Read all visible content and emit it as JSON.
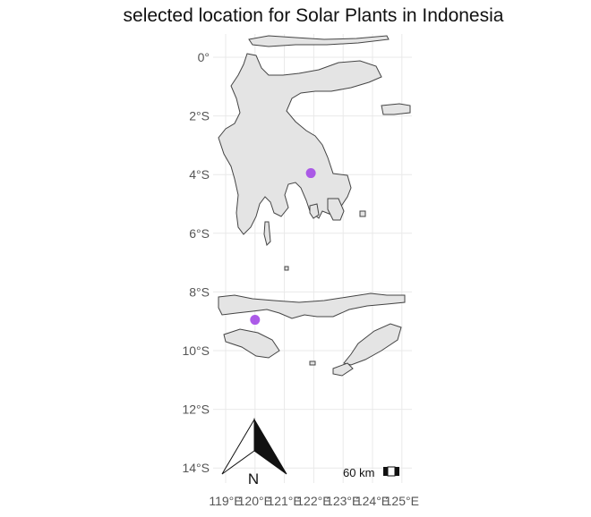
{
  "title": "selected location for Solar Plants in Indonesia",
  "chart_data": {
    "type": "map",
    "title": "selected location for Solar Plants in Indonesia",
    "xlim": [
      119,
      125
    ],
    "ylim": [
      -14,
      0
    ],
    "x_ticks": [
      {
        "value": 119,
        "label": "119°E"
      },
      {
        "value": 120,
        "label": "120°E"
      },
      {
        "value": 121,
        "label": "121°E"
      },
      {
        "value": 122,
        "label": "122°E"
      },
      {
        "value": 123,
        "label": "123°E"
      },
      {
        "value": 124,
        "label": "124°E"
      },
      {
        "value": 125,
        "label": "125°E"
      }
    ],
    "y_ticks": [
      {
        "value": 0,
        "label": "0°"
      },
      {
        "value": -2,
        "label": "2°S"
      },
      {
        "value": -4,
        "label": "4°S"
      },
      {
        "value": -6,
        "label": "6°S"
      },
      {
        "value": -8,
        "label": "8°S"
      },
      {
        "value": -10,
        "label": "10°S"
      },
      {
        "value": -12,
        "label": "12°S"
      },
      {
        "value": -14,
        "label": "14°S"
      }
    ],
    "points": [
      {
        "lon": 121.9,
        "lat": -3.95
      },
      {
        "lon": 120.0,
        "lat": -8.95
      }
    ],
    "point_color": "#a349e6",
    "land_color": "#e4e4e4",
    "grid": true,
    "north_arrow_label": "N",
    "scale_bar_label": "60 km"
  }
}
